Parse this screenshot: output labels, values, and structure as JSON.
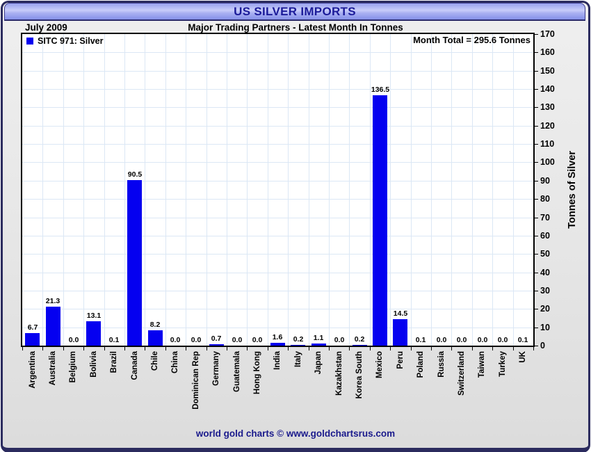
{
  "header": {
    "title": "US SILVER IMPORTS",
    "period": "July 2009",
    "subtitle": "Major Trading Partners - Latest Month In Tonnes"
  },
  "legend_label": "SITC 971: Silver",
  "month_total": "Month Total = 295.6 Tonnes",
  "footer": "world gold charts © www.goldchartsrus.com",
  "colors": {
    "bar": "#0500f0",
    "title_text": "#1b1b99",
    "window_border": "#2b2b5e",
    "grid": "#dbe7f5",
    "footer_text": "#1a1a8c"
  },
  "chart_data": {
    "type": "bar",
    "title": "US SILVER IMPORTS",
    "subtitle": "Major Trading Partners - Latest Month In Tonnes",
    "period": "July 2009",
    "categories": [
      "Argentina",
      "Australia",
      "Belgium",
      "Bolivia",
      "Brazil",
      "Canada",
      "Chile",
      "China",
      "Dominican Rep",
      "Germany",
      "Guatemala",
      "Hong Kong",
      "India",
      "Italy",
      "Japan",
      "Kazakhstan",
      "Korea South",
      "Mexico",
      "Peru",
      "Poland",
      "Russia",
      "Switzerland",
      "Taiwan",
      "Turkey",
      "UK"
    ],
    "values": [
      6.7,
      21.3,
      0.0,
      13.1,
      0.1,
      90.5,
      8.2,
      0.0,
      0.0,
      0.7,
      0.0,
      0.0,
      1.6,
      0.2,
      1.1,
      0.0,
      0.2,
      136.5,
      14.5,
      0.1,
      0.0,
      0.0,
      0.0,
      0.0,
      0.1
    ],
    "series_name": "SITC 971: Silver",
    "xlabel": "",
    "ylabel": "Tonnes of Silver",
    "ylim": [
      0,
      170
    ],
    "ytick_step": 10,
    "grid": true,
    "legend_position": "top-left",
    "annotations": [
      "Month Total = 295.6 Tonnes"
    ]
  }
}
